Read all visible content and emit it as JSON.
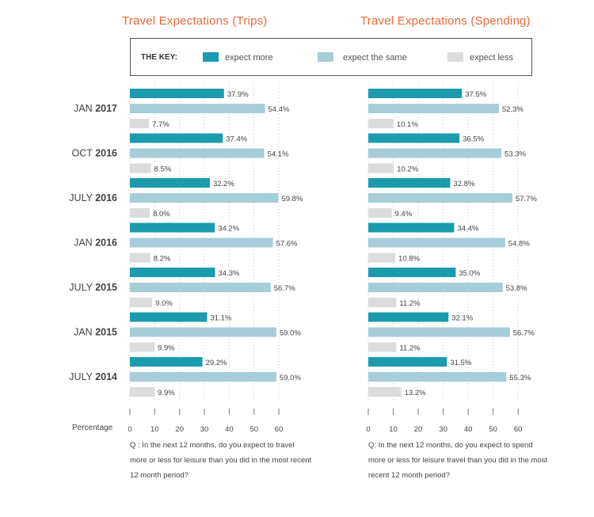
{
  "colors": {
    "more": "#1B9BAE",
    "same": "#A6CDD8",
    "less": "#DCDCDE",
    "accent": "#E86A3A"
  },
  "key": {
    "label": "THE KEY:",
    "more": "expect more",
    "same": "expect the same",
    "less": "expect less"
  },
  "axis_label": "Percentage",
  "questions": {
    "trips": "Q : In the next 12 months, do you expect to travel more or less for leisure than you did in the most recent 12 month period?",
    "spending": "Q: In the next 12 months, do you expect to spend more or less for leisure travel than you did in the most recent 12 month period?"
  },
  "chart_data": [
    {
      "type": "bar",
      "title": "Travel Expectations (Trips)",
      "categories": [
        [
          "JAN",
          "2017"
        ],
        [
          "OCT",
          "2016"
        ],
        [
          "JULY",
          "2016"
        ],
        [
          "JAN",
          "2016"
        ],
        [
          "JULY",
          "2015"
        ],
        [
          "JAN",
          "2015"
        ],
        [
          "JULY",
          "2014"
        ]
      ],
      "series": [
        {
          "name": "expect more",
          "values": [
            37.9,
            37.4,
            32.2,
            34.2,
            34.3,
            31.1,
            29.2
          ]
        },
        {
          "name": "expect the same",
          "values": [
            54.4,
            54.1,
            59.8,
            57.6,
            56.7,
            59.0,
            59.0
          ]
        },
        {
          "name": "expect less",
          "values": [
            7.7,
            8.5,
            8.0,
            8.2,
            9.0,
            9.9,
            9.9
          ]
        }
      ],
      "xlim": [
        0,
        60
      ],
      "xticks": [
        0,
        10,
        20,
        30,
        40,
        50,
        60
      ],
      "grid": true
    },
    {
      "type": "bar",
      "title": "Travel Expectations (Spending)",
      "categories": [
        [
          "JAN",
          "2017"
        ],
        [
          "OCT",
          "2016"
        ],
        [
          "JULY",
          "2016"
        ],
        [
          "JAN",
          "2016"
        ],
        [
          "JULY",
          "2015"
        ],
        [
          "JAN",
          "2015"
        ],
        [
          "JULY",
          "2014"
        ]
      ],
      "series": [
        {
          "name": "expect more",
          "values": [
            37.5,
            36.5,
            32.8,
            34.4,
            35.0,
            32.1,
            31.5
          ]
        },
        {
          "name": "expect the same",
          "values": [
            52.3,
            53.3,
            57.7,
            54.8,
            53.8,
            56.7,
            55.3
          ]
        },
        {
          "name": "expect less",
          "values": [
            10.1,
            10.2,
            9.4,
            10.8,
            11.2,
            11.2,
            13.2
          ]
        }
      ],
      "xlim": [
        0,
        60
      ],
      "xticks": [
        0,
        10,
        20,
        30,
        40,
        50,
        60
      ],
      "grid": true
    }
  ]
}
